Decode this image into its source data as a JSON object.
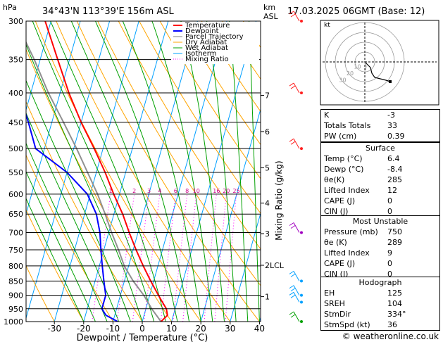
{
  "header": {
    "location": "34°43'N  113°39'E  156m  ASL",
    "datetime": "17.03.2025  06GMT  (Base: 12)",
    "p_unit": "hPa",
    "alt_unit_1": "km",
    "alt_unit_2": "ASL"
  },
  "chart_data": {
    "type": "skew-t log-p",
    "title": "34°43'N  113°39'E  156m  ASL",
    "xlabel": "Dewpoint / Temperature (°C)",
    "ylabel": "hPa",
    "right_axis_label": "Mixing Ratio (g/kg)",
    "x_ticks": [
      -30,
      -20,
      -10,
      0,
      10,
      20,
      30,
      40
    ],
    "pressure_levels": [
      300,
      350,
      400,
      450,
      500,
      550,
      600,
      650,
      700,
      750,
      800,
      850,
      900,
      950,
      1000
    ],
    "xlim": [
      -40,
      40
    ],
    "ylim": [
      1000,
      300
    ],
    "legend": [
      "Temperature",
      "Dewpoint",
      "Parcel Trajectory",
      "Dry Adiabat",
      "Wet Adiabat",
      "Isotherm",
      "Mixing Ratio"
    ],
    "legend_colors": [
      "#ff0000",
      "#0000ff",
      "#808080",
      "#ffa500",
      "#00a000",
      "#00a0ff",
      "#ff00ff"
    ],
    "km_levels": [
      {
        "km": "7",
        "p": 404
      },
      {
        "km": "6",
        "p": 467
      },
      {
        "km": "5",
        "p": 540
      },
      {
        "km": "4",
        "p": 622
      },
      {
        "km": "3",
        "p": 703
      },
      {
        "km": "2LCL",
        "p": 798
      },
      {
        "km": "1",
        "p": 905
      }
    ],
    "mixing_ratio_labels": [
      "1",
      "2",
      "3",
      "4",
      "6",
      "8",
      "10",
      "16",
      "20",
      "25"
    ],
    "mixing_ratio_values": [
      1,
      2,
      3,
      4,
      6,
      8,
      10,
      16,
      20,
      25
    ],
    "temperature": [
      [
        1000,
        6.4
      ],
      [
        975,
        8.0
      ],
      [
        950,
        7.0
      ],
      [
        925,
        5.0
      ],
      [
        900,
        3.0
      ],
      [
        850,
        -1.0
      ],
      [
        800,
        -5.0
      ],
      [
        750,
        -9.0
      ],
      [
        700,
        -13.0
      ],
      [
        650,
        -17.0
      ],
      [
        600,
        -22.0
      ],
      [
        550,
        -27.0
      ],
      [
        500,
        -33.0
      ],
      [
        450,
        -40.0
      ],
      [
        400,
        -47.0
      ],
      [
        350,
        -54.0
      ],
      [
        300,
        -62.0
      ]
    ],
    "dewpoint": [
      [
        1000,
        -8.4
      ],
      [
        975,
        -13.0
      ],
      [
        950,
        -15.0
      ],
      [
        900,
        -15.0
      ],
      [
        850,
        -17.0
      ],
      [
        800,
        -19.0
      ],
      [
        750,
        -21.0
      ],
      [
        700,
        -23.0
      ],
      [
        650,
        -26.0
      ],
      [
        600,
        -31.0
      ],
      [
        550,
        -40.0
      ],
      [
        500,
        -53.0
      ],
      [
        450,
        -58.0
      ],
      [
        400,
        -64.0
      ],
      [
        350,
        -72.0
      ],
      [
        300,
        -80.0
      ]
    ],
    "parcel": [
      [
        1000,
        6.4
      ],
      [
        950,
        2.0
      ],
      [
        900,
        -2.0
      ],
      [
        850,
        -7.0
      ],
      [
        800,
        -11.5
      ],
      [
        750,
        -15.0
      ],
      [
        700,
        -19.0
      ],
      [
        650,
        -23.0
      ],
      [
        600,
        -27.5
      ],
      [
        550,
        -33.0
      ],
      [
        500,
        -39.0
      ],
      [
        450,
        -46.0
      ],
      [
        400,
        -54.0
      ],
      [
        350,
        -62.0
      ],
      [
        300,
        -72.0
      ]
    ],
    "wind_barb_levels": [
      300,
      400,
      500,
      700,
      850,
      900,
      925,
      1000
    ]
  },
  "hodograph": {
    "unit": "kt",
    "ring_labels": [
      "10",
      "20",
      "30"
    ]
  },
  "indices": {
    "rows": [
      {
        "label": "K",
        "value": "-3"
      },
      {
        "label": "Totals Totals",
        "value": "33"
      },
      {
        "label": "PW (cm)",
        "value": "0.39"
      }
    ]
  },
  "surface": {
    "title": "Surface",
    "rows": [
      {
        "label": "Temp (°C)",
        "value": "6.4"
      },
      {
        "label": "Dewp (°C)",
        "value": "-8.4"
      },
      {
        "label": "θe(K)",
        "value": "285"
      },
      {
        "label": "Lifted Index",
        "value": "12"
      },
      {
        "label": "CAPE (J)",
        "value": "0"
      },
      {
        "label": "CIN (J)",
        "value": "0"
      }
    ]
  },
  "most_unstable": {
    "title": "Most Unstable",
    "rows": [
      {
        "label": "Pressure (mb)",
        "value": "750"
      },
      {
        "label": "θe (K)",
        "value": "289"
      },
      {
        "label": "Lifted Index",
        "value": "9"
      },
      {
        "label": "CAPE (J)",
        "value": "0"
      },
      {
        "label": "CIN (J)",
        "value": "0"
      }
    ]
  },
  "hodograph_table": {
    "title": "Hodograph",
    "rows": [
      {
        "label": "EH",
        "value": "125"
      },
      {
        "label": "SREH",
        "value": "104"
      },
      {
        "label": "StmDir",
        "value": "334°"
      },
      {
        "label": "StmSpd (kt)",
        "value": "36"
      }
    ]
  },
  "footer": {
    "credit": "© weatheronline.co.uk"
  }
}
